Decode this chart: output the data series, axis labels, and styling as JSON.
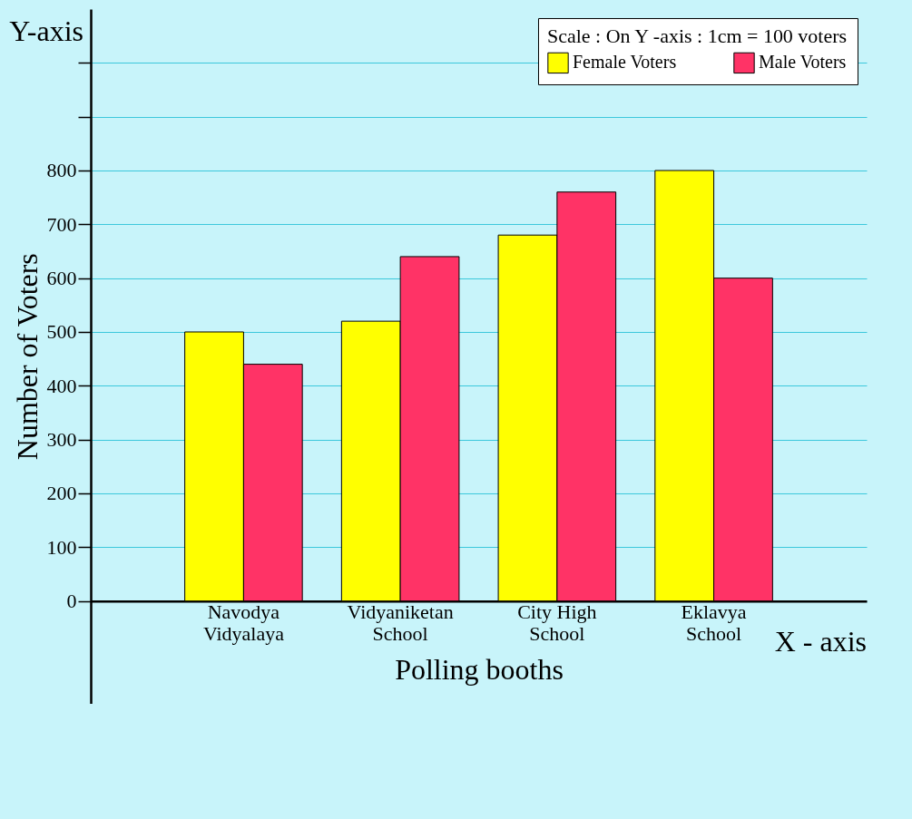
{
  "chart_data": {
    "type": "bar",
    "xlabel": "Polling booths",
    "ylabel": "Number of Voters",
    "legend_title": "Scale : On Y -axis : 1cm = 100 voters",
    "categories": [
      "Navodya\nVidyalaya",
      "Vidyaniketan\nSchool",
      "City High\nSchool",
      "Eklavya\nSchool"
    ],
    "series": [
      {
        "name": "Female Voters",
        "color": "#ffff00",
        "values": [
          500,
          520,
          680,
          800
        ]
      },
      {
        "name": "Male Voters",
        "color": "#ff3366",
        "values": [
          440,
          640,
          760,
          600
        ]
      }
    ],
    "ylim": [
      -190,
      1100
    ],
    "yticks": [
      0,
      100,
      200,
      300,
      400,
      500,
      600,
      700,
      800,
      {
        "value": 900,
        "label": null
      },
      {
        "value": 1000,
        "label": null
      }
    ],
    "grid": "y",
    "legend": "top right",
    "annotations": [
      "Y-axis",
      "X - axis"
    ]
  }
}
